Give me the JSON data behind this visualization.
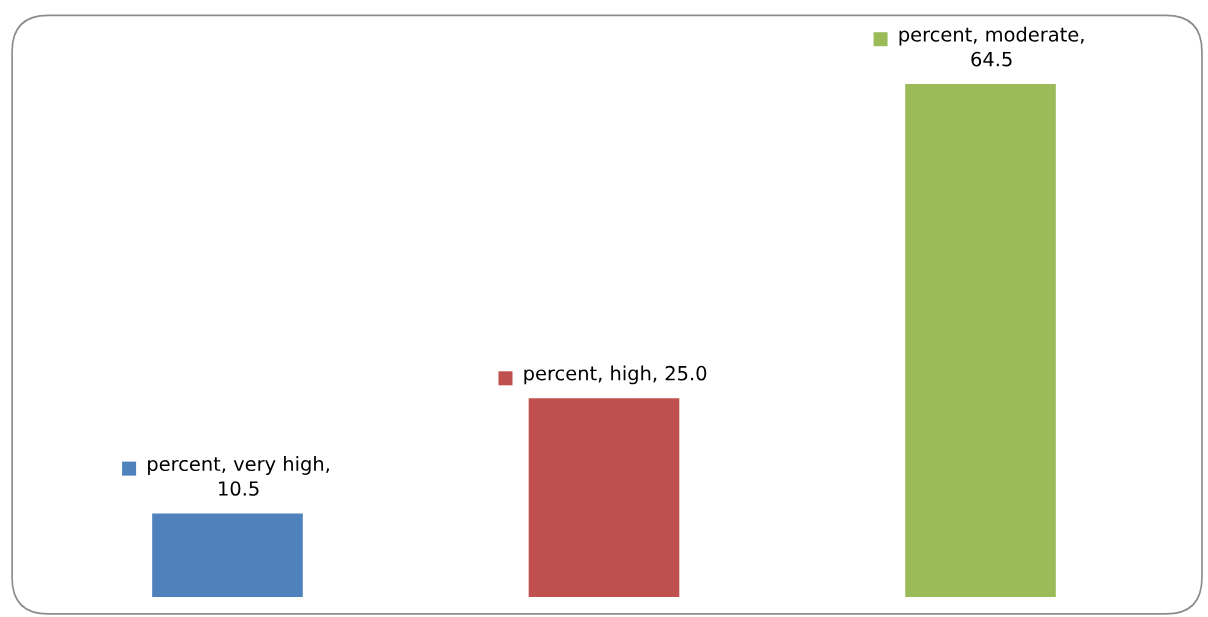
{
  "chart_data": {
    "type": "bar",
    "categories": [
      null,
      null,
      null
    ],
    "values": [
      10.5,
      25.0,
      64.5
    ],
    "colors": [
      "#4f81bd",
      "#c0504d",
      "#9bbb59"
    ],
    "value_labels": [
      "percent, very high, 10.5",
      "percent, high, 25.0",
      "percent, moderate, 64.5"
    ]
  }
}
